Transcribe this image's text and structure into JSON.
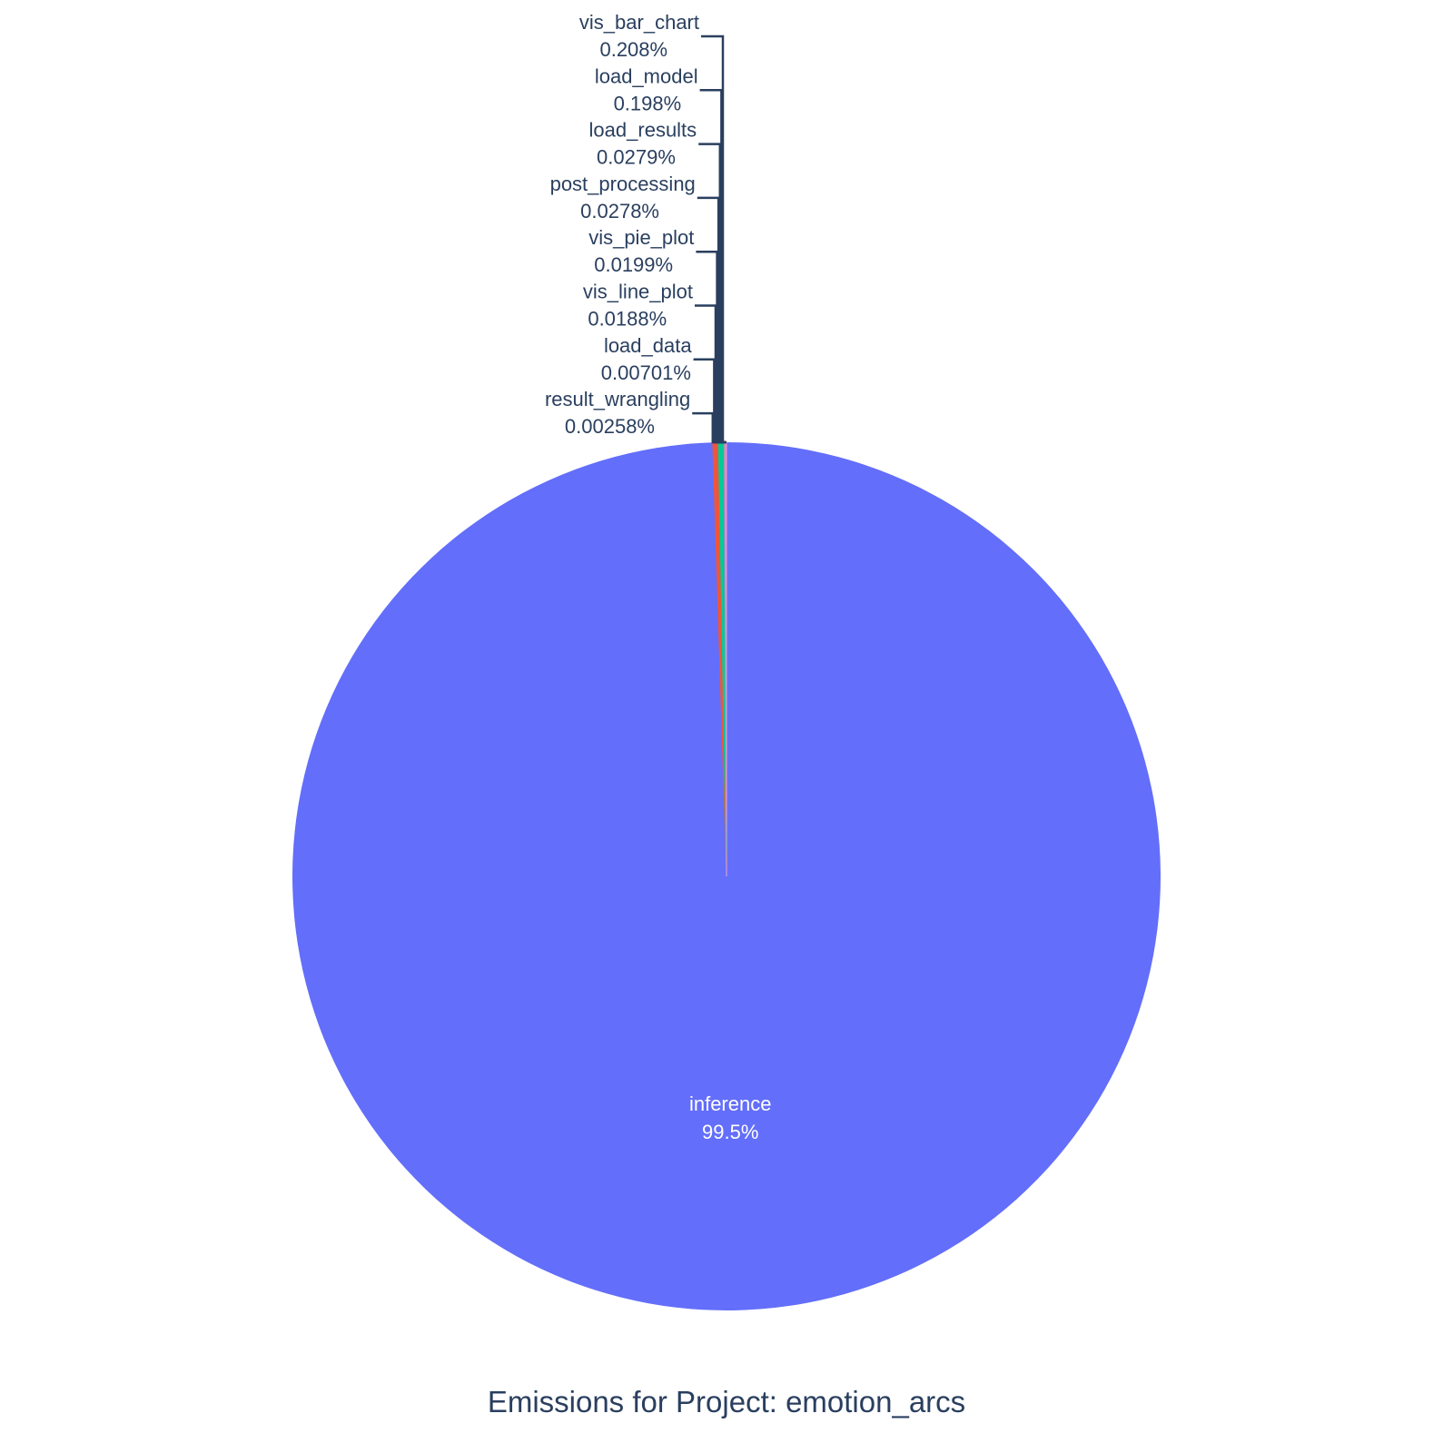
{
  "chart_data": {
    "type": "pie",
    "title": "Emissions for Project: emotion_arcs",
    "direction": "clockwise",
    "start": "top",
    "slices": [
      {
        "label": "inference",
        "percent_text": "99.5%",
        "value": 99.462,
        "color": "#636efa",
        "text_color": "#ffffff"
      },
      {
        "label": "vis_bar_chart",
        "percent_text": "0.208%",
        "value": 0.208,
        "color": "#ef553b",
        "text_color": "#2a3f5f"
      },
      {
        "label": "load_model",
        "percent_text": "0.198%",
        "value": 0.198,
        "color": "#00cc96",
        "text_color": "#2a3f5f"
      },
      {
        "label": "load_results",
        "percent_text": "0.0279%",
        "value": 0.0279,
        "color": "#ab63fa",
        "text_color": "#2a3f5f"
      },
      {
        "label": "post_processing",
        "percent_text": "0.0278%",
        "value": 0.0278,
        "color": "#ffa15a",
        "text_color": "#2a3f5f"
      },
      {
        "label": "vis_pie_plot",
        "percent_text": "0.0199%",
        "value": 0.0199,
        "color": "#19d3f3",
        "text_color": "#2a3f5f"
      },
      {
        "label": "vis_line_plot",
        "percent_text": "0.0188%",
        "value": 0.0188,
        "color": "#ff6692",
        "text_color": "#2a3f5f"
      },
      {
        "label": "load_data",
        "percent_text": "0.00701%",
        "value": 0.00701,
        "color": "#b6e880",
        "text_color": "#2a3f5f"
      },
      {
        "label": "result_wrangling",
        "percent_text": "0.00258%",
        "value": 0.00258,
        "color": "#ff97ff",
        "text_color": "#2a3f5f"
      }
    ],
    "label_color": "#2a3f5f",
    "leader_color": "#2a3f5f",
    "legend": "none"
  }
}
